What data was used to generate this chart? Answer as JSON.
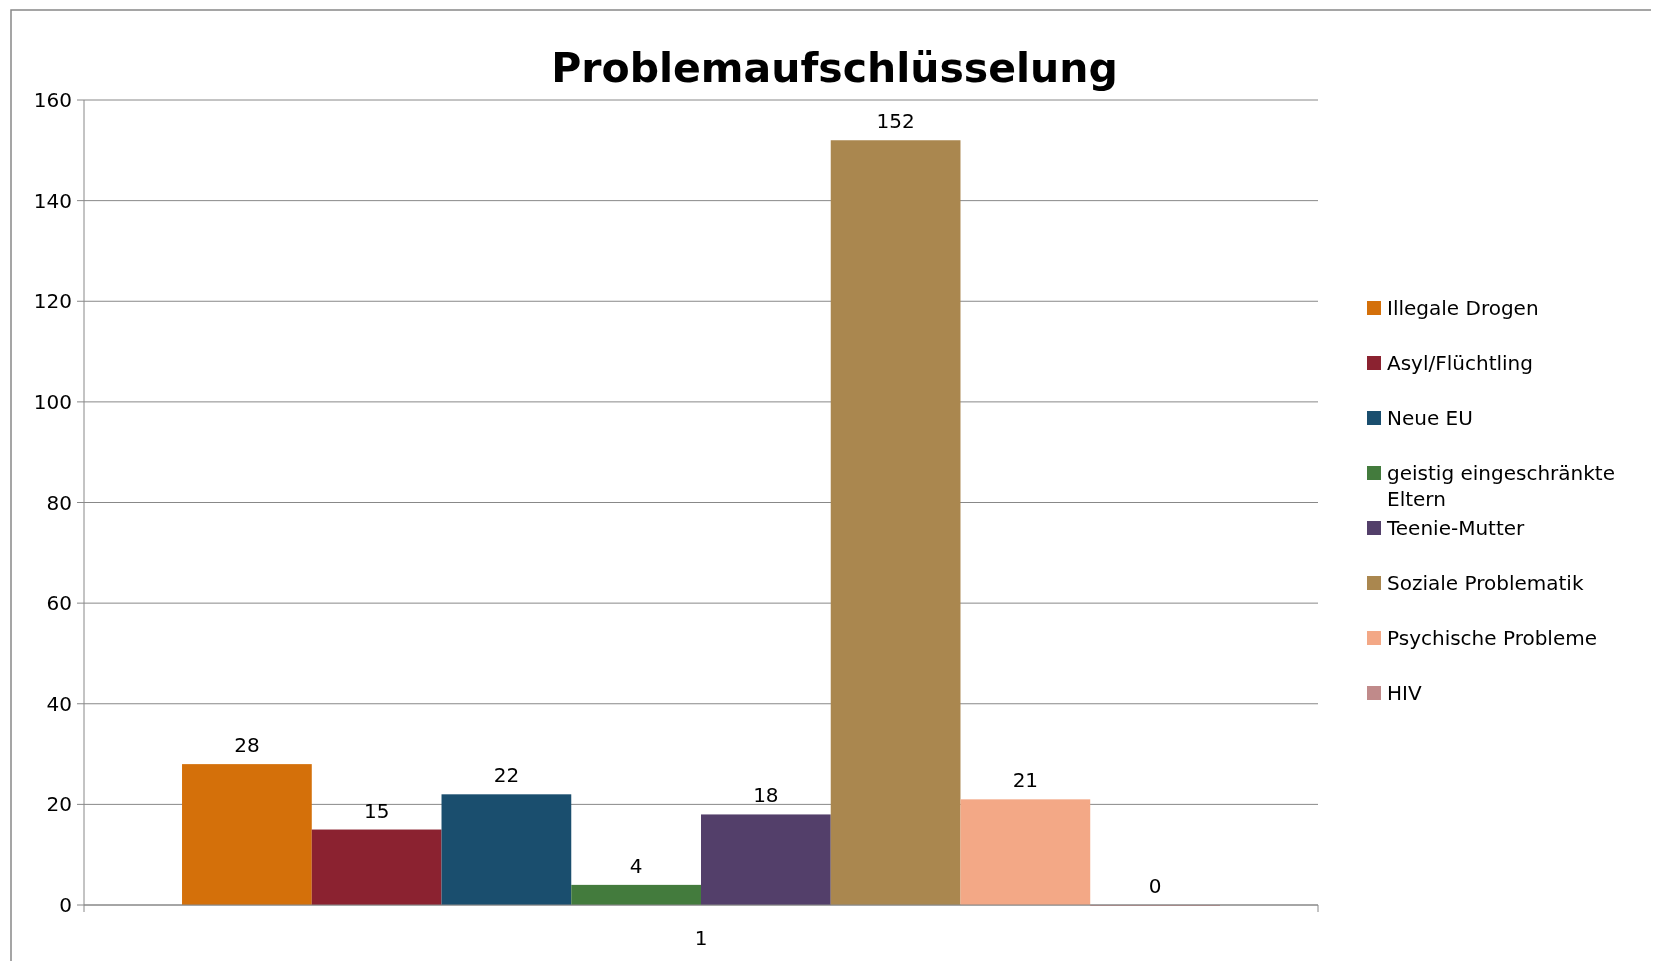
{
  "chart_data": {
    "type": "bar",
    "title": "Problemaufschlüsselung",
    "categories": [
      "1"
    ],
    "series": [
      {
        "name": "Illegale Drogen",
        "color": "#d4700a",
        "values": [
          28
        ]
      },
      {
        "name": "Asyl/Flüchtling",
        "color": "#8b2230",
        "values": [
          15
        ]
      },
      {
        "name": "Neue EU",
        "color": "#1a4e6e",
        "values": [
          22
        ]
      },
      {
        "name": "geistig eingeschränkte Eltern",
        "color": "#437b3d",
        "values": [
          4
        ]
      },
      {
        "name": "Teenie-Mutter",
        "color": "#533f6a",
        "values": [
          18
        ]
      },
      {
        "name": "Soziale Problematik",
        "color": "#aa874f",
        "values": [
          152
        ]
      },
      {
        "name": "Psychische Probleme",
        "color": "#f3a886",
        "values": [
          21
        ]
      },
      {
        "name": "HIV",
        "color": "#c08a8a",
        "values": [
          0
        ]
      }
    ],
    "ylim": [
      0,
      160
    ],
    "yticks": [
      0,
      20,
      40,
      60,
      80,
      100,
      120,
      140,
      160
    ],
    "grid": "y",
    "legend": "right",
    "data_labels": true
  }
}
